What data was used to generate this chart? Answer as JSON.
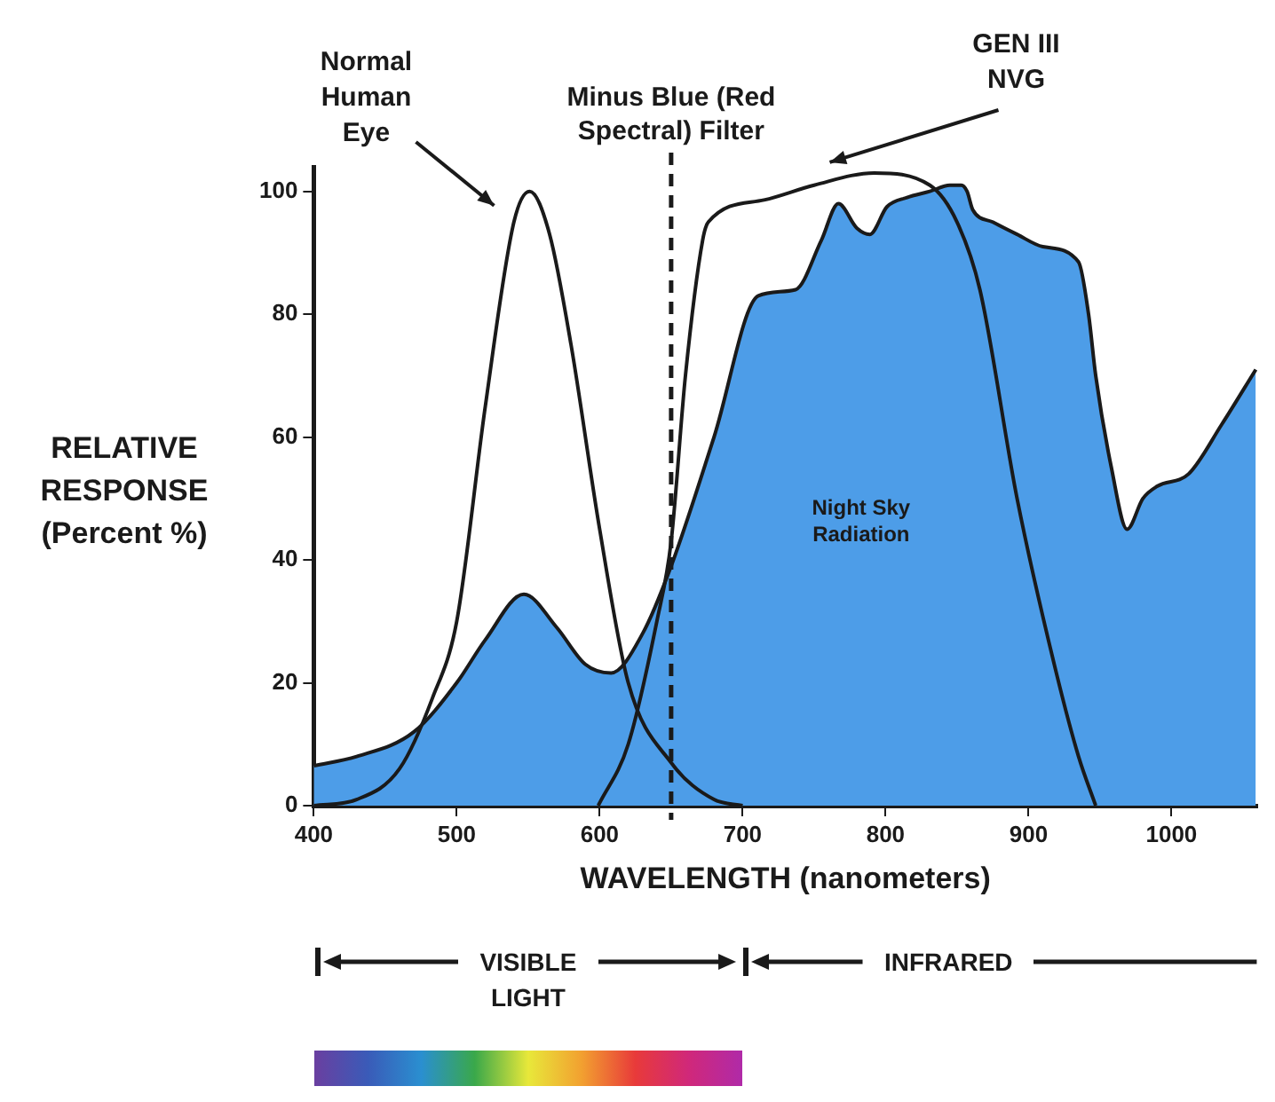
{
  "chart_data": {
    "type": "line",
    "xlabel": "WAVELENGTH (nanometers)",
    "ylabel": "RELATIVE RESPONSE (Percent %)",
    "xlim": [
      400,
      1060
    ],
    "xticks": [
      400,
      500,
      600,
      700,
      800,
      900,
      1000
    ],
    "ylim": [
      0,
      104
    ],
    "yticks": [
      0,
      20,
      40,
      60,
      80,
      100
    ],
    "grid": false,
    "legend": false,
    "marker": "none",
    "series": [
      {
        "name": "Night Sky Radiation",
        "type": "area",
        "color": "#4d9de8",
        "x": [
          400,
          430,
          470,
          500,
          520,
          547,
          570,
          590,
          608,
          630,
          650,
          680,
          711,
          737,
          755,
          767,
          780,
          789,
          801,
          815,
          831,
          845,
          853,
          857,
          861,
          875,
          892,
          910,
          935,
          942,
          947,
          958,
          969,
          980,
          990,
          1012,
          1035,
          1059
        ],
        "values": [
          6.5,
          8,
          12,
          20,
          27,
          34.4,
          29,
          23,
          21.6,
          28,
          39,
          60,
          83,
          84,
          92,
          98,
          94,
          93,
          97.5,
          99,
          100,
          101,
          101,
          100,
          97,
          95,
          93,
          91,
          88.5,
          80,
          70,
          55,
          45,
          50,
          52,
          54,
          62,
          71
        ]
      },
      {
        "name": "Normal Human Eye",
        "type": "line",
        "color": "#1a1a1a",
        "x": [
          400,
          430,
          460,
          483,
          500,
          520,
          540,
          551,
          565,
          580,
          600,
          620,
          650,
          680,
          700
        ],
        "values": [
          0,
          1,
          6,
          17.5,
          30,
          65,
          95,
          100,
          93,
          75,
          45,
          20,
          7,
          1,
          0
        ]
      },
      {
        "name": "GEN III NVG",
        "type": "line",
        "color": "#1a1a1a",
        "x": [
          599,
          620,
          640,
          650,
          660,
          672,
          676,
          715,
          750,
          792,
          831,
          850,
          866,
          892,
          918,
          935,
          947
        ],
        "values": [
          0,
          10,
          30,
          43,
          70,
          92,
          95,
          98.6,
          101,
          103,
          101,
          95,
          84,
          50,
          23,
          8,
          0
        ]
      }
    ],
    "ref_lines": [
      {
        "axis": "x",
        "value": 650,
        "label": "Minus Blue (Red Spectral) Filter",
        "color": "#1a1a1a",
        "line_style": "dashed"
      }
    ],
    "annotations": [
      "VISIBLE LIGHT",
      "INFRARED"
    ]
  }
}
